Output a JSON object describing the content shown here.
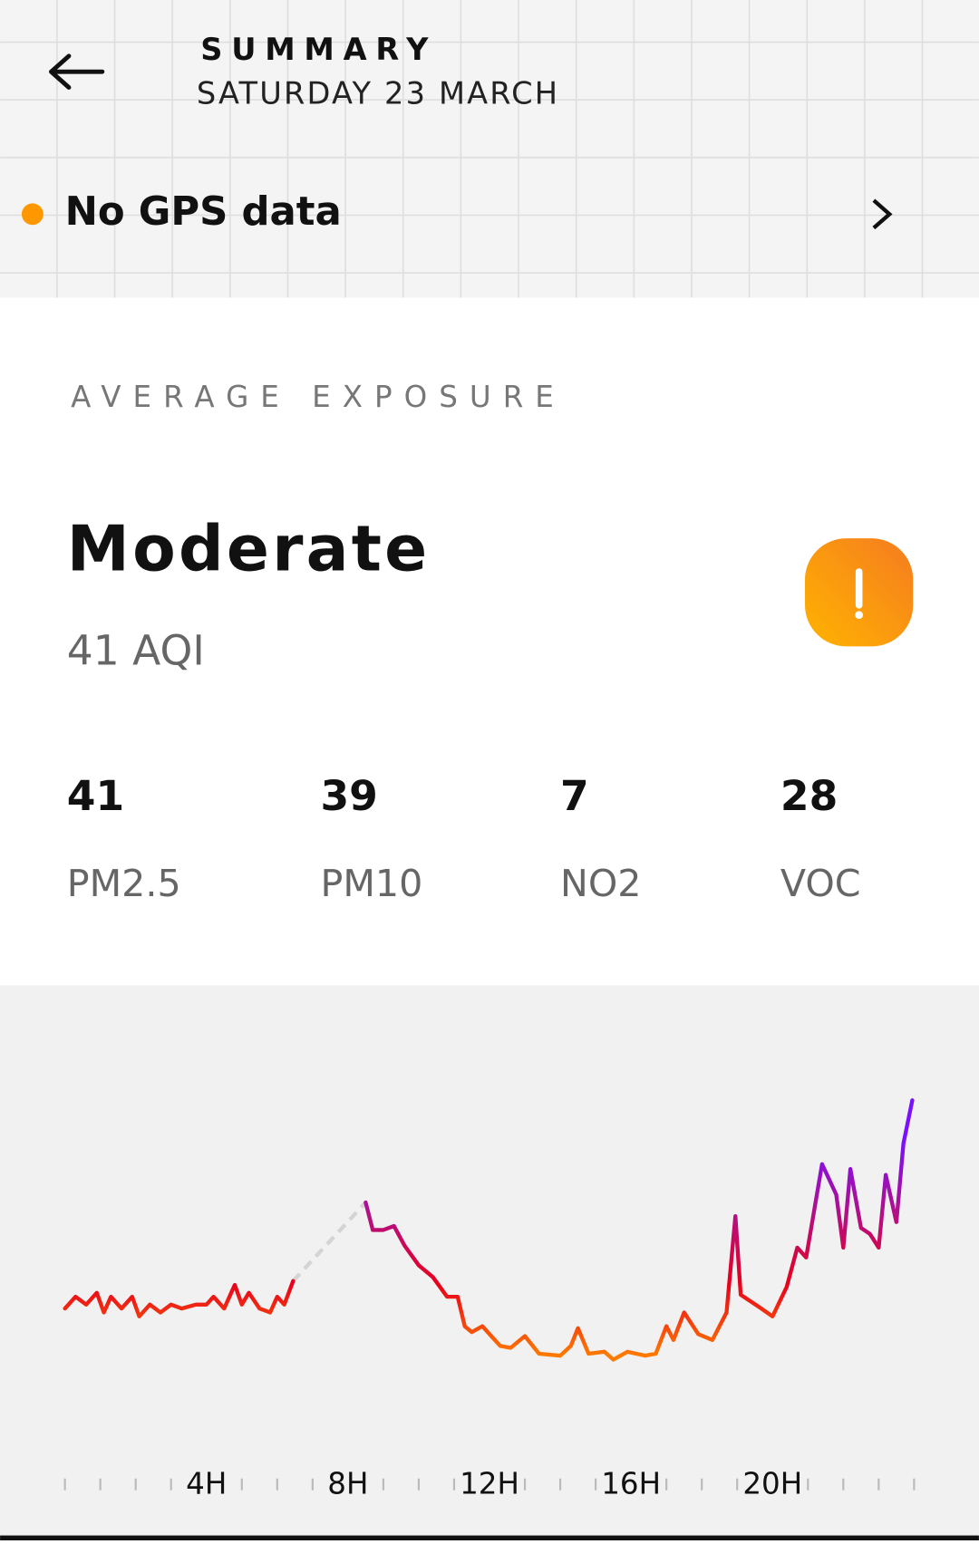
{
  "header": {
    "title": "SUMMARY",
    "date": "SATURDAY 23 MARCH"
  },
  "gps": {
    "label": "No GPS data",
    "dot_color": "#ff9800"
  },
  "exposure": {
    "heading": "AVERAGE EXPOSURE",
    "level": "Moderate",
    "aqi": "41 AQI",
    "metrics": [
      {
        "value": 41,
        "name": "PM2.5"
      },
      {
        "value": 39,
        "name": "PM10"
      },
      {
        "value": 7,
        "name": "NO2"
      },
      {
        "value": 28,
        "name": "VOC"
      }
    ]
  },
  "chart_data": {
    "type": "line",
    "x": [
      0.0,
      0.3,
      0.6,
      0.9,
      1.1,
      1.3,
      1.6,
      1.9,
      2.1,
      2.4,
      2.7,
      3.0,
      3.3,
      3.7,
      4.0,
      4.2,
      4.5,
      4.8,
      5.0,
      5.2,
      5.5,
      5.8,
      6.0,
      6.2,
      6.45,
      7.5,
      8.5,
      8.7,
      9.0,
      9.3,
      9.6,
      10.0,
      10.4,
      10.8,
      11.1,
      11.3,
      11.5,
      11.8,
      12.05,
      12.3,
      12.6,
      13.0,
      13.4,
      14.0,
      14.3,
      14.5,
      14.8,
      15.25,
      15.5,
      15.9,
      16.4,
      16.7,
      17.0,
      17.2,
      17.5,
      17.9,
      18.3,
      18.7,
      18.95,
      19.1,
      19.6,
      20.0,
      20.4,
      20.7,
      20.95,
      21.4,
      21.8,
      22.0,
      22.2,
      22.5,
      22.75,
      23.0,
      23.2,
      23.5,
      23.7,
      23.95
    ],
    "values": [
      27,
      30,
      28,
      31,
      26,
      30,
      27,
      30,
      25,
      28,
      26,
      28,
      27,
      28,
      28,
      30,
      27,
      33,
      28,
      31,
      27,
      26,
      30,
      28,
      34,
      null,
      54,
      47,
      47,
      48,
      43,
      38,
      35,
      30,
      30,
      22.5,
      21,
      22.5,
      20,
      17.5,
      17,
      20,
      15.5,
      15,
      17.5,
      22,
      15.5,
      16,
      14,
      16,
      15,
      15.5,
      22.5,
      19,
      26,
      20.5,
      19,
      26,
      50.5,
      30.5,
      27.5,
      25,
      32.5,
      42.5,
      40,
      63.75,
      56,
      42.5,
      62.5,
      47.5,
      46,
      42.5,
      61,
      49,
      69,
      80
    ],
    "xlim": [
      0,
      24
    ],
    "ylim": [
      0,
      100
    ],
    "xticks": [
      {
        "value": 4,
        "label": "4H"
      },
      {
        "value": 8,
        "label": "8H"
      },
      {
        "value": 12,
        "label": "12H"
      },
      {
        "value": 16,
        "label": "16H"
      },
      {
        "value": 20,
        "label": "20H"
      }
    ],
    "minor_xticks": [
      0,
      1,
      2,
      3,
      5,
      6,
      7,
      9,
      10,
      11,
      13,
      14,
      15,
      17,
      18,
      19,
      21,
      22,
      23,
      24
    ],
    "gradient_colors": [
      "#ff7a00",
      "#e8001c",
      "#b0108a",
      "#7a10ff"
    ],
    "gap_color": "#d4d4d4"
  }
}
